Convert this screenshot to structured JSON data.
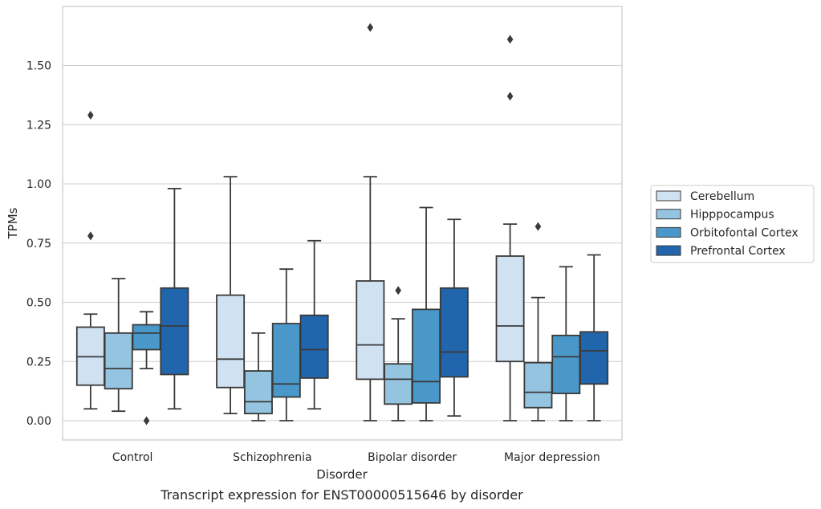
{
  "chart_data": {
    "type": "box",
    "title": "",
    "caption": "Transcript expression for ENST00000515646 by disorder",
    "xlabel": "Disorder",
    "ylabel": "TPMs",
    "ylim": [
      -0.08,
      1.75
    ],
    "yticks": [
      0.0,
      0.25,
      0.5,
      0.75,
      1.0,
      1.25,
      1.5
    ],
    "ytick_labels": [
      "0.00",
      "0.25",
      "0.50",
      "0.75",
      "1.00",
      "1.25",
      "1.50"
    ],
    "grid": "horizontal",
    "legend_position": "right",
    "categories": [
      "Control",
      "Schizophrenia",
      "Bipolar disorder",
      "Major depression"
    ],
    "series": [
      {
        "name": "Cerebellum",
        "color": "#d0e1f2",
        "boxes": [
          {
            "whisker_low": 0.05,
            "q1": 0.15,
            "median": 0.27,
            "q3": 0.395,
            "whisker_high": 0.45,
            "outliers": [
              0.78,
              1.29
            ]
          },
          {
            "whisker_low": 0.03,
            "q1": 0.14,
            "median": 0.26,
            "q3": 0.53,
            "whisker_high": 1.03,
            "outliers": []
          },
          {
            "whisker_low": 0.0,
            "q1": 0.175,
            "median": 0.32,
            "q3": 0.59,
            "whisker_high": 1.03,
            "outliers": [
              1.66
            ]
          },
          {
            "whisker_low": 0.0,
            "q1": 0.25,
            "median": 0.4,
            "q3": 0.695,
            "whisker_high": 0.83,
            "outliers": [
              1.37,
              1.61
            ]
          }
        ]
      },
      {
        "name": "Hipppocampus",
        "color": "#94c4df",
        "boxes": [
          {
            "whisker_low": 0.04,
            "q1": 0.135,
            "median": 0.22,
            "q3": 0.37,
            "whisker_high": 0.6,
            "outliers": []
          },
          {
            "whisker_low": 0.0,
            "q1": 0.03,
            "median": 0.08,
            "q3": 0.21,
            "whisker_high": 0.37,
            "outliers": []
          },
          {
            "whisker_low": 0.0,
            "q1": 0.07,
            "median": 0.175,
            "q3": 0.24,
            "whisker_high": 0.43,
            "outliers": [
              0.55
            ]
          },
          {
            "whisker_low": 0.0,
            "q1": 0.055,
            "median": 0.12,
            "q3": 0.245,
            "whisker_high": 0.52,
            "outliers": [
              0.82
            ]
          }
        ]
      },
      {
        "name": "Orbitofontal Cortex",
        "color": "#4a98c9",
        "boxes": [
          {
            "whisker_low": 0.22,
            "q1": 0.3,
            "median": 0.37,
            "q3": 0.405,
            "whisker_high": 0.46,
            "outliers": [
              0.0
            ]
          },
          {
            "whisker_low": 0.0,
            "q1": 0.1,
            "median": 0.155,
            "q3": 0.41,
            "whisker_high": 0.64,
            "outliers": []
          },
          {
            "whisker_low": 0.0,
            "q1": 0.075,
            "median": 0.165,
            "q3": 0.47,
            "whisker_high": 0.9,
            "outliers": []
          },
          {
            "whisker_low": 0.0,
            "q1": 0.115,
            "median": 0.27,
            "q3": 0.36,
            "whisker_high": 0.65,
            "outliers": []
          }
        ]
      },
      {
        "name": "Prefrontal Cortex",
        "color": "#2166ac",
        "boxes": [
          {
            "whisker_low": 0.05,
            "q1": 0.195,
            "median": 0.4,
            "q3": 0.56,
            "whisker_high": 0.98,
            "outliers": []
          },
          {
            "whisker_low": 0.05,
            "q1": 0.18,
            "median": 0.3,
            "q3": 0.445,
            "whisker_high": 0.76,
            "outliers": []
          },
          {
            "whisker_low": 0.02,
            "q1": 0.185,
            "median": 0.29,
            "q3": 0.56,
            "whisker_high": 0.85,
            "outliers": []
          },
          {
            "whisker_low": 0.0,
            "q1": 0.155,
            "median": 0.295,
            "q3": 0.375,
            "whisker_high": 0.7,
            "outliers": []
          }
        ]
      }
    ]
  }
}
